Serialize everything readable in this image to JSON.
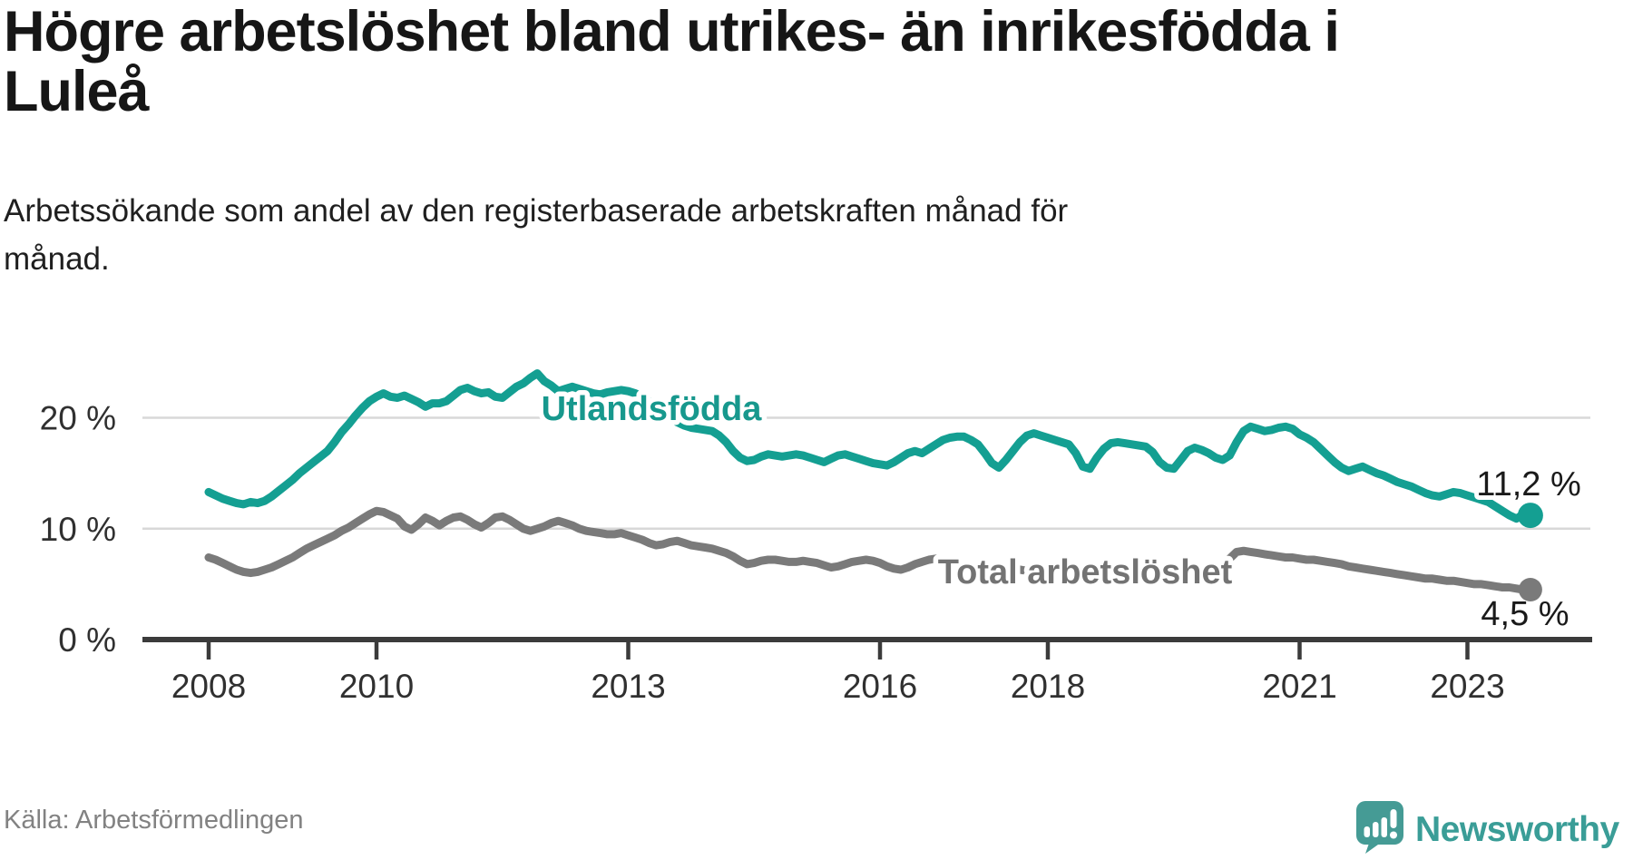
{
  "header": {
    "title_lines": [
      "Högre arbetslöshet bland utrikes- än inrikesfödda i",
      "Luleå"
    ],
    "subtitle_lines": [
      "Arbetssökande som andel av den registerbaserade arbetskraften månad för",
      "månad."
    ]
  },
  "footer": {
    "source": "Källa: Arbetsförmedlingen",
    "brand_name": "Newsworthy",
    "brand_logo_icon": "bar-chart-exclamation-speech-bubble-icon"
  },
  "colors": {
    "accent_teal": "#149f92",
    "series_gray": "#7a7a7a",
    "axis": "#3b3b3b",
    "grid": "#d8d8d8",
    "value_text": "#1a1a1a",
    "tick_text": "#303030",
    "brand_teal": "#3a9d97",
    "logo_fill": "#459b95"
  },
  "chart_data": {
    "type": "line",
    "title": "Högre arbetslöshet bland utrikes- än inrikesfödda i Luleå",
    "ylabel": "",
    "xlabel": "",
    "unit": "percent of registered labour force",
    "frequency": "monthly",
    "x_start_month": "2008-01",
    "x_end_month": "2023-10",
    "x_ticks": [
      2008,
      2010,
      2013,
      2016,
      2018,
      2021,
      2023
    ],
    "y_ticks": [
      0,
      10,
      20
    ],
    "y_tick_suffix": " %",
    "ylim": [
      0,
      25.5
    ],
    "grid": "horizontal",
    "legend_position": "inline-labels",
    "series": [
      {
        "name": "Utlandsfödda",
        "color": "#149f92",
        "label_color": "#17988d",
        "end_label": "11,2 %",
        "end_value": 11.2,
        "values": [
          13.3,
          13.0,
          12.7,
          12.5,
          12.3,
          12.2,
          12.4,
          12.3,
          12.5,
          12.9,
          13.4,
          13.9,
          14.4,
          15.0,
          15.5,
          16.0,
          16.5,
          17.0,
          17.8,
          18.7,
          19.4,
          20.2,
          20.9,
          21.5,
          21.9,
          22.2,
          21.9,
          21.8,
          22.0,
          21.7,
          21.4,
          21.0,
          21.3,
          21.3,
          21.5,
          22.0,
          22.5,
          22.7,
          22.4,
          22.2,
          22.3,
          21.9,
          21.8,
          22.3,
          22.8,
          23.1,
          23.6,
          24.0,
          23.3,
          22.9,
          22.4,
          22.6,
          22.8,
          22.6,
          22.4,
          22.2,
          22.1,
          22.3,
          22.4,
          22.5,
          22.4,
          22.2,
          21.9,
          21.5,
          21.0,
          20.5,
          20.0,
          19.6,
          19.3,
          19.1,
          19.0,
          18.9,
          18.8,
          18.4,
          17.8,
          17.0,
          16.4,
          16.1,
          16.2,
          16.5,
          16.7,
          16.6,
          16.5,
          16.6,
          16.7,
          16.6,
          16.4,
          16.2,
          16.0,
          16.3,
          16.6,
          16.7,
          16.5,
          16.3,
          16.1,
          15.9,
          15.8,
          15.7,
          16.0,
          16.4,
          16.8,
          17.0,
          16.8,
          17.2,
          17.6,
          18.0,
          18.2,
          18.3,
          18.3,
          18.0,
          17.6,
          16.8,
          15.9,
          15.5,
          16.2,
          17.0,
          17.8,
          18.4,
          18.6,
          18.4,
          18.2,
          18.0,
          17.8,
          17.6,
          16.8,
          15.6,
          15.4,
          16.4,
          17.2,
          17.7,
          17.8,
          17.7,
          17.6,
          17.5,
          17.4,
          16.9,
          16.0,
          15.5,
          15.4,
          16.2,
          17.0,
          17.3,
          17.1,
          16.8,
          16.4,
          16.2,
          16.6,
          17.8,
          18.8,
          19.2,
          19.0,
          18.8,
          18.9,
          19.1,
          19.2,
          19.0,
          18.5,
          18.2,
          17.8,
          17.2,
          16.6,
          16.0,
          15.5,
          15.2,
          15.4,
          15.6,
          15.3,
          15.0,
          14.8,
          14.5,
          14.2,
          14.0,
          13.8,
          13.5,
          13.2,
          13.0,
          12.9,
          13.1,
          13.3,
          13.2,
          13.0,
          12.8,
          12.6,
          12.4,
          12.0,
          11.6,
          11.2,
          10.9,
          11.3,
          11.2
        ]
      },
      {
        "name": "Total arbetslöshet",
        "color": "#7a7a7a",
        "label_color": "#737373",
        "end_label": "4,5 %",
        "end_value": 4.5,
        "values": [
          7.4,
          7.2,
          6.9,
          6.6,
          6.3,
          6.1,
          6.0,
          6.1,
          6.3,
          6.5,
          6.8,
          7.1,
          7.4,
          7.8,
          8.2,
          8.5,
          8.8,
          9.1,
          9.4,
          9.8,
          10.1,
          10.5,
          10.9,
          11.3,
          11.6,
          11.5,
          11.2,
          10.9,
          10.2,
          9.9,
          10.4,
          11.0,
          10.7,
          10.3,
          10.7,
          11.0,
          11.1,
          10.8,
          10.4,
          10.1,
          10.5,
          11.0,
          11.1,
          10.8,
          10.4,
          10.0,
          9.8,
          10.0,
          10.2,
          10.5,
          10.7,
          10.5,
          10.3,
          10.0,
          9.8,
          9.7,
          9.6,
          9.5,
          9.5,
          9.6,
          9.4,
          9.2,
          9.0,
          8.7,
          8.5,
          8.6,
          8.8,
          8.9,
          8.7,
          8.5,
          8.4,
          8.3,
          8.2,
          8.0,
          7.8,
          7.5,
          7.1,
          6.8,
          6.9,
          7.1,
          7.2,
          7.2,
          7.1,
          7.0,
          7.0,
          7.1,
          7.0,
          6.9,
          6.7,
          6.5,
          6.6,
          6.8,
          7.0,
          7.1,
          7.2,
          7.1,
          6.9,
          6.6,
          6.4,
          6.3,
          6.5,
          6.8,
          7.0,
          7.2,
          7.3,
          7.2,
          7.0,
          6.9,
          6.4,
          6.2,
          6.1,
          6.0,
          6.2,
          6.4,
          6.6,
          6.5,
          6.3,
          6.2,
          6.1,
          6.2,
          6.2,
          6.1,
          6.0,
          5.9,
          6.0,
          6.2,
          6.3,
          6.3,
          6.2,
          6.1,
          6.0,
          6.0,
          6.0,
          5.9,
          5.9,
          6.0,
          6.1,
          6.3,
          6.4,
          6.4,
          6.3,
          6.3,
          6.4,
          6.5,
          6.6,
          6.7,
          7.3,
          7.9,
          8.0,
          7.9,
          7.8,
          7.7,
          7.6,
          7.5,
          7.4,
          7.4,
          7.3,
          7.2,
          7.2,
          7.1,
          7.0,
          6.9,
          6.8,
          6.6,
          6.5,
          6.4,
          6.3,
          6.2,
          6.1,
          6.0,
          5.9,
          5.8,
          5.7,
          5.6,
          5.5,
          5.5,
          5.4,
          5.3,
          5.3,
          5.2,
          5.1,
          5.0,
          5.0,
          4.9,
          4.8,
          4.7,
          4.7,
          4.6,
          4.5,
          4.5
        ]
      }
    ]
  }
}
